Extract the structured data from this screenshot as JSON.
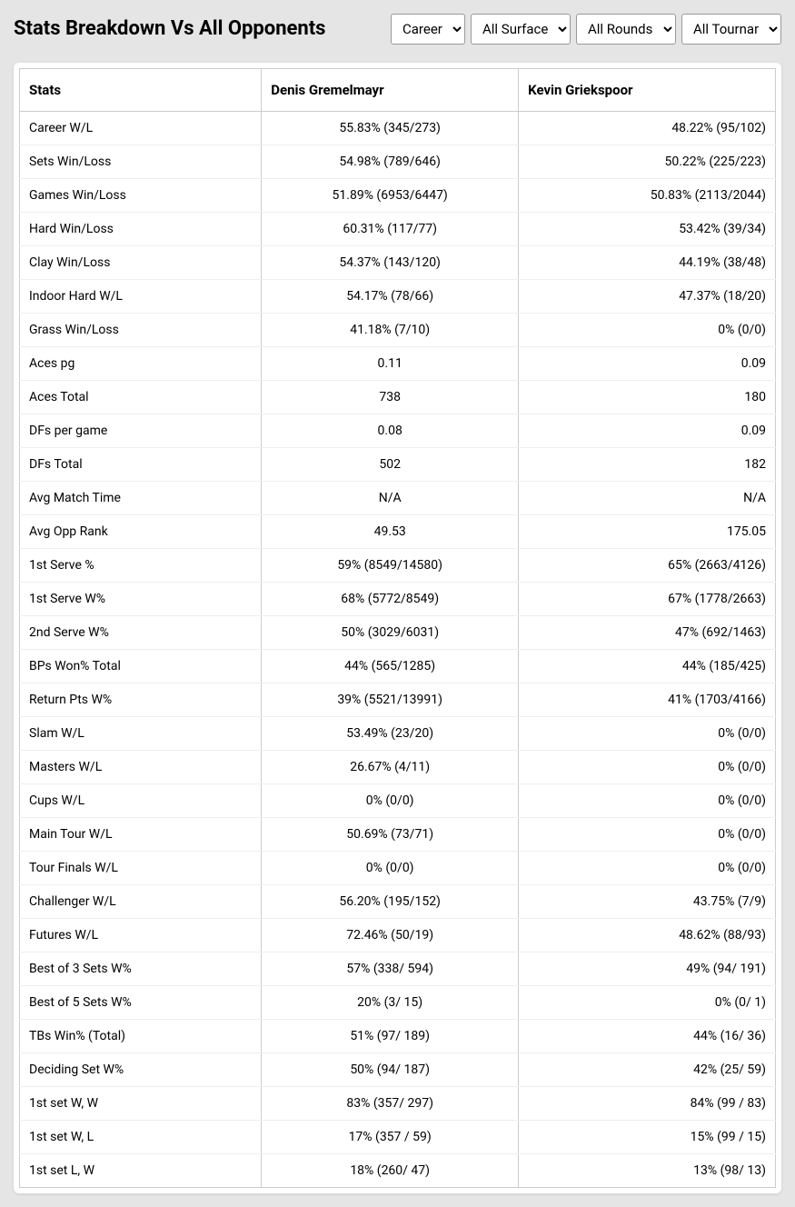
{
  "header": {
    "title": "Stats Breakdown Vs All Opponents",
    "filters": {
      "period": {
        "selected": "Career"
      },
      "surface": {
        "selected": "All Surfaces"
      },
      "rounds": {
        "selected": "All Rounds"
      },
      "tournaments": {
        "selected": "All Tournaments"
      }
    }
  },
  "table": {
    "columns": [
      "Stats",
      "Denis Gremelmayr",
      "Kevin Griekspoor"
    ],
    "rows": [
      [
        "Career W/L",
        "55.83% (345/273)",
        "48.22% (95/102)"
      ],
      [
        "Sets Win/Loss",
        "54.98% (789/646)",
        "50.22% (225/223)"
      ],
      [
        "Games Win/Loss",
        "51.89% (6953/6447)",
        "50.83% (2113/2044)"
      ],
      [
        "Hard Win/Loss",
        "60.31% (117/77)",
        "53.42% (39/34)"
      ],
      [
        "Clay Win/Loss",
        "54.37% (143/120)",
        "44.19% (38/48)"
      ],
      [
        "Indoor Hard W/L",
        "54.17% (78/66)",
        "47.37% (18/20)"
      ],
      [
        "Grass Win/Loss",
        "41.18% (7/10)",
        "0% (0/0)"
      ],
      [
        "Aces pg",
        "0.11",
        "0.09"
      ],
      [
        "Aces Total",
        "738",
        "180"
      ],
      [
        "DFs per game",
        "0.08",
        "0.09"
      ],
      [
        "DFs Total",
        "502",
        "182"
      ],
      [
        "Avg Match Time",
        "N/A",
        "N/A"
      ],
      [
        "Avg Opp Rank",
        "49.53",
        "175.05"
      ],
      [
        "1st Serve %",
        "59% (8549/14580)",
        "65% (2663/4126)"
      ],
      [
        "1st Serve W%",
        "68% (5772/8549)",
        "67% (1778/2663)"
      ],
      [
        "2nd Serve W%",
        "50% (3029/6031)",
        "47% (692/1463)"
      ],
      [
        "BPs Won% Total",
        "44% (565/1285)",
        "44% (185/425)"
      ],
      [
        "Return Pts W%",
        "39% (5521/13991)",
        "41% (1703/4166)"
      ],
      [
        "Slam W/L",
        "53.49% (23/20)",
        "0% (0/0)"
      ],
      [
        "Masters W/L",
        "26.67% (4/11)",
        "0% (0/0)"
      ],
      [
        "Cups W/L",
        "0% (0/0)",
        "0% (0/0)"
      ],
      [
        "Main Tour W/L",
        "50.69% (73/71)",
        "0% (0/0)"
      ],
      [
        "Tour Finals W/L",
        "0% (0/0)",
        "0% (0/0)"
      ],
      [
        "Challenger W/L",
        "56.20% (195/152)",
        "43.75% (7/9)"
      ],
      [
        "Futures W/L",
        "72.46% (50/19)",
        "48.62% (88/93)"
      ],
      [
        "Best of 3 Sets W%",
        "57% (338/ 594)",
        "49% (94/ 191)"
      ],
      [
        "Best of 5 Sets W%",
        "20% (3/ 15)",
        "0% (0/ 1)"
      ],
      [
        "TBs Win% (Total)",
        "51% (97/ 189)",
        "44% (16/ 36)"
      ],
      [
        "Deciding Set W%",
        "50% (94/ 187)",
        "42% (25/ 59)"
      ],
      [
        "1st set W, W",
        "83% (357/ 297)",
        "84% (99 / 83)"
      ],
      [
        "1st set W, L",
        "17% (357 / 59)",
        "15% (99 / 15)"
      ],
      [
        "1st set L, W",
        "18% (260/ 47)",
        "13% (98/ 13)"
      ]
    ]
  }
}
